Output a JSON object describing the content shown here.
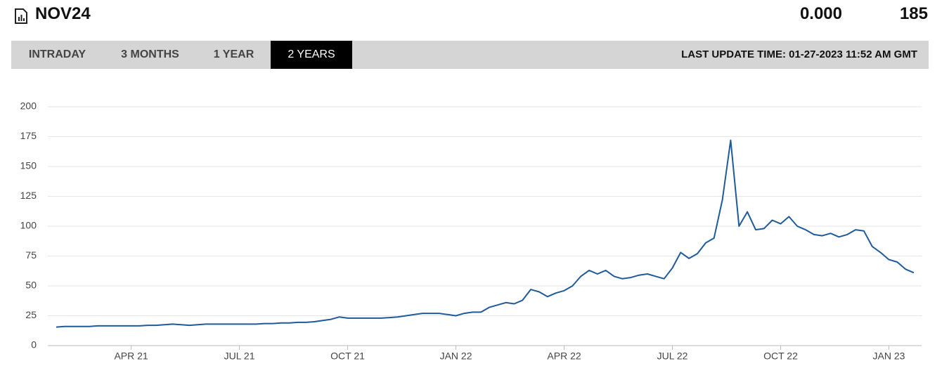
{
  "header": {
    "title": "NOV24",
    "value1": "0.000",
    "value2": "185"
  },
  "tabs": [
    "INTRADAY",
    "3 MONTHS",
    "1 YEAR",
    "2 YEARS"
  ],
  "active_tab": 3,
  "last_update": "LAST UPDATE TIME: 01-27-2023 11:52 AM GMT",
  "chart_data": {
    "type": "line",
    "color": "#1f5a99",
    "grid": true,
    "ylim": [
      0,
      200
    ],
    "yticks": [
      0,
      25,
      50,
      75,
      100,
      125,
      150,
      175,
      200
    ],
    "categories": [
      null,
      null,
      null,
      null,
      null,
      null,
      null,
      null,
      null,
      "APR 21",
      null,
      null,
      null,
      null,
      null,
      null,
      null,
      null,
      null,
      null,
      null,
      null,
      "JUL 21",
      null,
      null,
      null,
      null,
      null,
      null,
      null,
      null,
      null,
      null,
      null,
      null,
      "OCT 21",
      null,
      null,
      null,
      null,
      null,
      null,
      null,
      null,
      null,
      null,
      null,
      null,
      "JAN 22",
      null,
      null,
      null,
      null,
      null,
      null,
      null,
      null,
      null,
      null,
      null,
      null,
      "APR 22",
      null,
      null,
      null,
      null,
      null,
      null,
      null,
      null,
      null,
      null,
      null,
      null,
      "JUL 22",
      null,
      null,
      null,
      null,
      null,
      null,
      null,
      null,
      null,
      null,
      null,
      null,
      "OCT 22",
      null,
      null,
      null,
      null,
      null,
      null,
      null,
      null,
      null,
      null,
      null,
      null,
      "JAN 23",
      null,
      null,
      null
    ],
    "values": [
      15.5,
      16,
      16,
      16,
      16,
      16.5,
      16.5,
      16.5,
      16.5,
      16.5,
      16.5,
      17,
      17,
      17.5,
      18,
      17.5,
      17,
      17.5,
      18,
      18,
      18,
      18,
      18,
      18,
      18,
      18.5,
      18.5,
      19,
      19,
      19.5,
      19.5,
      20,
      21,
      22,
      24,
      23,
      23,
      23,
      23,
      23,
      23.5,
      24,
      25,
      26,
      27,
      27,
      27,
      26,
      25,
      27,
      28,
      28,
      32,
      34,
      36,
      35,
      38,
      47,
      45,
      41,
      44,
      46,
      50,
      58,
      63,
      60,
      63,
      58,
      56,
      57,
      59,
      60,
      58,
      56,
      65,
      78,
      73,
      77,
      86,
      90,
      122,
      172,
      100,
      112,
      97,
      98,
      105,
      102,
      108,
      100,
      97,
      93,
      92,
      94,
      91,
      93,
      97,
      96,
      83,
      78,
      72,
      70,
      64,
      61
    ]
  }
}
